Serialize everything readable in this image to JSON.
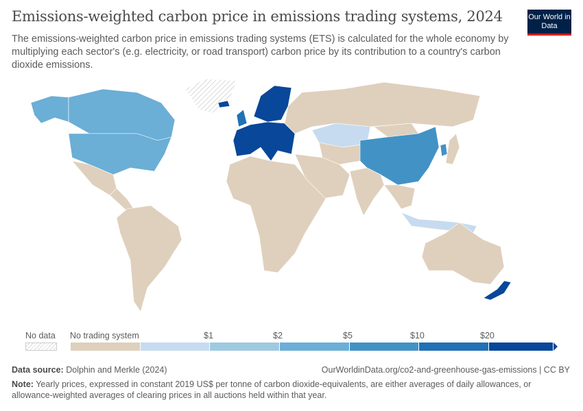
{
  "header": {
    "title": "Emissions-weighted carbon price in emissions trading systems, 2024",
    "subtitle": "The emissions-weighted carbon price in emissions trading systems (ETS) is calculated for the whole economy by multiplying each sector's (e.g. electricity, or road transport) carbon price by its contribution to a country's carbon dioxide emissions.",
    "logo": "Our World in Data"
  },
  "colors": {
    "no_trading": "#dfd0bd",
    "b1": "#c6dbef",
    "b2": "#9ecae1",
    "b3": "#6baed6",
    "b4": "#4292c6",
    "b5": "#2171b5",
    "b6": "#08479a",
    "no_data": "#ffffff"
  },
  "regions": [
    {
      "name": "Canada",
      "bin": "b3"
    },
    {
      "name": "United States",
      "bin": "b3"
    },
    {
      "name": "Alaska",
      "bin": "b3"
    },
    {
      "name": "Greenland",
      "bin": "no_data"
    },
    {
      "name": "Mexico",
      "bin": "no_trading"
    },
    {
      "name": "Central America",
      "bin": "no_trading"
    },
    {
      "name": "South America",
      "bin": "no_trading"
    },
    {
      "name": "Western Europe",
      "bin": "b6"
    },
    {
      "name": "United Kingdom",
      "bin": "b5"
    },
    {
      "name": "Scandinavia",
      "bin": "b6"
    },
    {
      "name": "Russia",
      "bin": "no_trading"
    },
    {
      "name": "Africa",
      "bin": "no_trading"
    },
    {
      "name": "Middle East",
      "bin": "no_trading"
    },
    {
      "name": "Kazakhstan",
      "bin": "b1"
    },
    {
      "name": "China",
      "bin": "b4"
    },
    {
      "name": "India",
      "bin": "no_trading"
    },
    {
      "name": "Southeast Asia",
      "bin": "no_trading"
    },
    {
      "name": "Indonesia",
      "bin": "b1"
    },
    {
      "name": "Australia",
      "bin": "no_trading"
    },
    {
      "name": "New Zealand",
      "bin": "b6"
    },
    {
      "name": "Japan",
      "bin": "no_trading"
    },
    {
      "name": "South Korea",
      "bin": "b4"
    },
    {
      "name": "Iceland",
      "bin": "b6"
    },
    {
      "name": "Central Asia",
      "bin": "no_trading"
    },
    {
      "name": "Mongolia",
      "bin": "no_trading"
    }
  ],
  "legend": {
    "no_data": "No data",
    "no_trading": "No trading system",
    "ticks": [
      "$1",
      "$2",
      "$5",
      "$10",
      "$20"
    ]
  },
  "footer": {
    "source_label": "Data source:",
    "source": "Dolphin and Merkle (2024)",
    "url": "OurWorldinData.org/co2-and-greenhouse-gas-emissions | CC BY",
    "note_label": "Note:",
    "note": "Yearly prices, expressed in constant 2019 US$ per tonne of carbon dioxide-equivalents, are either averages of daily allowances, or allowance-weighted averages of clearing prices in all auctions held within that year."
  }
}
